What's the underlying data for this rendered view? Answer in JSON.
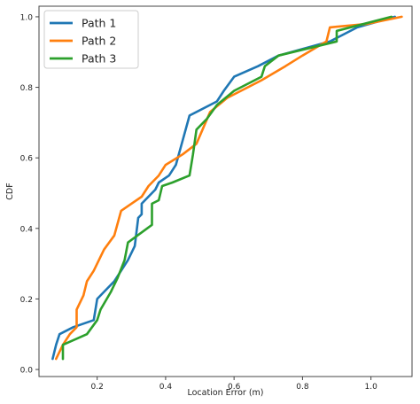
{
  "chart_data": {
    "type": "line",
    "xlabel": "Location Error (m)",
    "ylabel": "CDF",
    "xlim": [
      0.03,
      1.12
    ],
    "ylim": [
      -0.02,
      1.03
    ],
    "x_ticks": [
      0.2,
      0.4,
      0.6,
      0.8,
      1.0
    ],
    "x_tick_labels": [
      "0.2",
      "0.4",
      "0.6",
      "0.8",
      "1.0"
    ],
    "y_ticks": [
      0.0,
      0.2,
      0.4,
      0.6,
      0.8,
      1.0
    ],
    "y_tick_labels": [
      "0.0",
      "0.2",
      "0.4",
      "0.6",
      "0.8",
      "1.0"
    ],
    "grid": false,
    "legend_position": "top-left",
    "series": [
      {
        "name": "Path 1",
        "color": "#1f77b4",
        "x": [
          0.07,
          0.08,
          0.09,
          0.13,
          0.19,
          0.2,
          0.23,
          0.25,
          0.27,
          0.29,
          0.31,
          0.32,
          0.33,
          0.33,
          0.37,
          0.38,
          0.41,
          0.43,
          0.45,
          0.47,
          0.55,
          0.57,
          0.6,
          0.67,
          0.73,
          0.88,
          0.96,
          1.07
        ],
        "values": [
          0.03,
          0.07,
          0.1,
          0.12,
          0.14,
          0.2,
          0.23,
          0.25,
          0.28,
          0.31,
          0.35,
          0.43,
          0.44,
          0.47,
          0.51,
          0.53,
          0.55,
          0.58,
          0.65,
          0.72,
          0.76,
          0.79,
          0.83,
          0.86,
          0.89,
          0.93,
          0.97,
          1.0
        ]
      },
      {
        "name": "Path 2",
        "color": "#ff7f0e",
        "x": [
          0.08,
          0.1,
          0.12,
          0.14,
          0.14,
          0.16,
          0.17,
          0.19,
          0.22,
          0.25,
          0.27,
          0.3,
          0.33,
          0.35,
          0.38,
          0.4,
          0.45,
          0.49,
          0.53,
          0.58,
          0.68,
          0.75,
          0.8,
          0.87,
          0.88,
          0.99,
          1.09
        ],
        "values": [
          0.03,
          0.07,
          0.1,
          0.12,
          0.17,
          0.21,
          0.25,
          0.28,
          0.34,
          0.38,
          0.45,
          0.47,
          0.49,
          0.52,
          0.55,
          0.58,
          0.61,
          0.64,
          0.73,
          0.77,
          0.82,
          0.86,
          0.89,
          0.93,
          0.97,
          0.98,
          1.0
        ]
      },
      {
        "name": "Path 3",
        "color": "#2ca02c",
        "x": [
          0.1,
          0.1,
          0.17,
          0.2,
          0.21,
          0.24,
          0.26,
          0.28,
          0.29,
          0.36,
          0.36,
          0.38,
          0.39,
          0.42,
          0.47,
          0.48,
          0.49,
          0.52,
          0.55,
          0.6,
          0.68,
          0.69,
          0.73,
          0.9,
          0.9,
          1.06
        ],
        "values": [
          0.03,
          0.07,
          0.1,
          0.14,
          0.17,
          0.22,
          0.26,
          0.31,
          0.36,
          0.41,
          0.47,
          0.48,
          0.52,
          0.53,
          0.55,
          0.61,
          0.68,
          0.71,
          0.75,
          0.79,
          0.83,
          0.86,
          0.89,
          0.93,
          0.96,
          1.0
        ]
      }
    ]
  }
}
